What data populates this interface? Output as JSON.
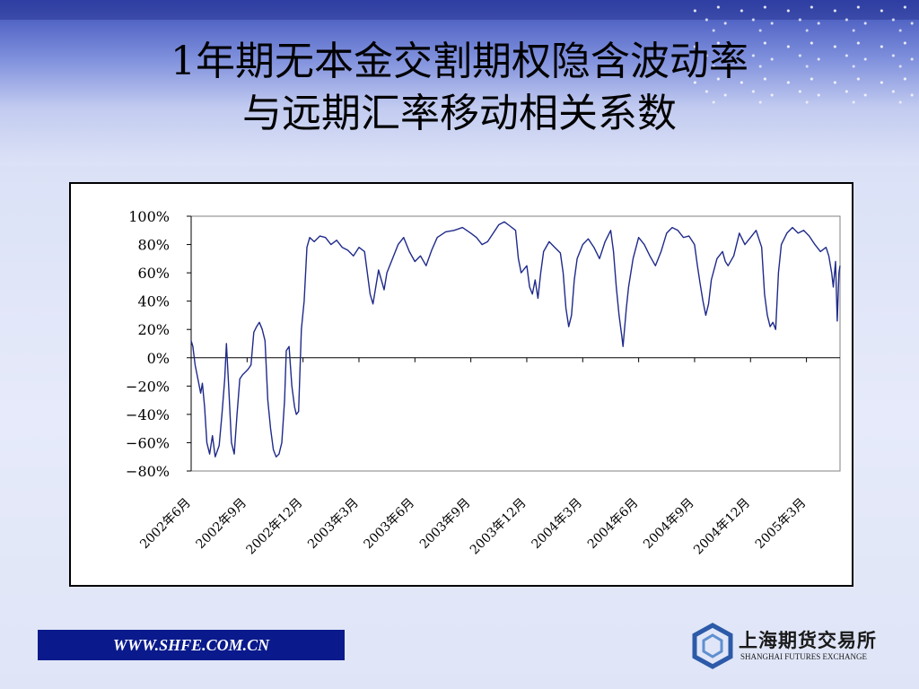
{
  "slide": {
    "title_line1": "1年期无本金交割期权隐含波动率",
    "title_line2": "与远期汇率移动相关系数",
    "url": "WWW.SHFE.COM.CN",
    "logo_cn": "上海期货交易所",
    "logo_en": "SHANGHAI FUTURES EXCHANGE"
  },
  "colors": {
    "line": "#1f2a8a",
    "url_bg": "#0a1a8c"
  },
  "chart_data": {
    "type": "line",
    "title": "",
    "xlabel": "",
    "ylabel": "",
    "ylim": [
      -80,
      100
    ],
    "y_ticks": [
      "100%",
      "80%",
      "60%",
      "40%",
      "20%",
      "0%",
      "−20%",
      "−40%",
      "−60%",
      "−80%"
    ],
    "y_tick_values": [
      100,
      80,
      60,
      40,
      20,
      0,
      -20,
      -40,
      -60,
      -80
    ],
    "x_ticks": [
      "2002年6月",
      "2002年9月",
      "2002年12月",
      "2003年3月",
      "2003年6月",
      "2003年9月",
      "2003年12月",
      "2004年3月",
      "2004年6月",
      "2004年9月",
      "2004年12月",
      "2005年3月"
    ],
    "x_range": [
      0,
      11.6
    ],
    "series": [
      {
        "name": "",
        "points": [
          [
            0.0,
            12
          ],
          [
            0.03,
            8
          ],
          [
            0.07,
            -5
          ],
          [
            0.12,
            -15
          ],
          [
            0.17,
            -25
          ],
          [
            0.2,
            -18
          ],
          [
            0.24,
            -35
          ],
          [
            0.28,
            -60
          ],
          [
            0.33,
            -68
          ],
          [
            0.38,
            -55
          ],
          [
            0.43,
            -70
          ],
          [
            0.5,
            -62
          ],
          [
            0.55,
            -40
          ],
          [
            0.6,
            -15
          ],
          [
            0.63,
            10
          ],
          [
            0.67,
            -20
          ],
          [
            0.72,
            -60
          ],
          [
            0.77,
            -68
          ],
          [
            0.82,
            -40
          ],
          [
            0.87,
            -15
          ],
          [
            0.92,
            -12
          ],
          [
            0.97,
            -10
          ],
          [
            1.02,
            -8
          ],
          [
            1.07,
            -5
          ],
          [
            1.12,
            18
          ],
          [
            1.17,
            22
          ],
          [
            1.22,
            25
          ],
          [
            1.27,
            20
          ],
          [
            1.32,
            12
          ],
          [
            1.37,
            -30
          ],
          [
            1.42,
            -50
          ],
          [
            1.47,
            -65
          ],
          [
            1.52,
            -70
          ],
          [
            1.57,
            -68
          ],
          [
            1.62,
            -60
          ],
          [
            1.67,
            -30
          ],
          [
            1.7,
            5
          ],
          [
            1.75,
            8
          ],
          [
            1.8,
            -20
          ],
          [
            1.85,
            -35
          ],
          [
            1.88,
            -40
          ],
          [
            1.92,
            -38
          ],
          [
            1.97,
            20
          ],
          [
            2.02,
            40
          ],
          [
            2.07,
            78
          ],
          [
            2.12,
            85
          ],
          [
            2.2,
            82
          ],
          [
            2.3,
            86
          ],
          [
            2.4,
            85
          ],
          [
            2.5,
            80
          ],
          [
            2.6,
            83
          ],
          [
            2.7,
            78
          ],
          [
            2.8,
            76
          ],
          [
            2.9,
            72
          ],
          [
            3.0,
            78
          ],
          [
            3.1,
            75
          ],
          [
            3.15,
            60
          ],
          [
            3.2,
            45
          ],
          [
            3.25,
            38
          ],
          [
            3.3,
            50
          ],
          [
            3.35,
            62
          ],
          [
            3.4,
            55
          ],
          [
            3.45,
            48
          ],
          [
            3.5,
            60
          ],
          [
            3.6,
            70
          ],
          [
            3.7,
            80
          ],
          [
            3.8,
            85
          ],
          [
            3.9,
            75
          ],
          [
            4.0,
            68
          ],
          [
            4.1,
            72
          ],
          [
            4.2,
            65
          ],
          [
            4.3,
            76
          ],
          [
            4.4,
            85
          ],
          [
            4.55,
            89
          ],
          [
            4.7,
            90
          ],
          [
            4.85,
            92
          ],
          [
            5.0,
            88
          ],
          [
            5.1,
            85
          ],
          [
            5.2,
            80
          ],
          [
            5.3,
            82
          ],
          [
            5.4,
            88
          ],
          [
            5.5,
            94
          ],
          [
            5.6,
            96
          ],
          [
            5.7,
            93
          ],
          [
            5.8,
            90
          ],
          [
            5.85,
            70
          ],
          [
            5.9,
            60
          ],
          [
            6.0,
            65
          ],
          [
            6.05,
            50
          ],
          [
            6.1,
            45
          ],
          [
            6.15,
            55
          ],
          [
            6.2,
            42
          ],
          [
            6.25,
            60
          ],
          [
            6.3,
            75
          ],
          [
            6.4,
            82
          ],
          [
            6.5,
            78
          ],
          [
            6.6,
            74
          ],
          [
            6.65,
            60
          ],
          [
            6.7,
            35
          ],
          [
            6.75,
            22
          ],
          [
            6.8,
            30
          ],
          [
            6.85,
            55
          ],
          [
            6.9,
            70
          ],
          [
            7.0,
            80
          ],
          [
            7.1,
            84
          ],
          [
            7.2,
            78
          ],
          [
            7.3,
            70
          ],
          [
            7.4,
            82
          ],
          [
            7.5,
            90
          ],
          [
            7.55,
            75
          ],
          [
            7.6,
            50
          ],
          [
            7.65,
            30
          ],
          [
            7.7,
            15
          ],
          [
            7.72,
            8
          ],
          [
            7.78,
            35
          ],
          [
            7.82,
            50
          ],
          [
            7.9,
            70
          ],
          [
            8.0,
            85
          ],
          [
            8.1,
            80
          ],
          [
            8.2,
            72
          ],
          [
            8.3,
            65
          ],
          [
            8.4,
            75
          ],
          [
            8.5,
            88
          ],
          [
            8.6,
            92
          ],
          [
            8.7,
            90
          ],
          [
            8.8,
            85
          ],
          [
            8.9,
            86
          ],
          [
            9.0,
            80
          ],
          [
            9.05,
            65
          ],
          [
            9.1,
            52
          ],
          [
            9.15,
            40
          ],
          [
            9.2,
            30
          ],
          [
            9.25,
            38
          ],
          [
            9.3,
            55
          ],
          [
            9.4,
            70
          ],
          [
            9.5,
            75
          ],
          [
            9.55,
            68
          ],
          [
            9.6,
            65
          ],
          [
            9.7,
            72
          ],
          [
            9.8,
            88
          ],
          [
            9.9,
            80
          ],
          [
            10.0,
            85
          ],
          [
            10.1,
            90
          ],
          [
            10.2,
            78
          ],
          [
            10.25,
            45
          ],
          [
            10.3,
            30
          ],
          [
            10.35,
            22
          ],
          [
            10.4,
            25
          ],
          [
            10.45,
            20
          ],
          [
            10.5,
            60
          ],
          [
            10.55,
            80
          ],
          [
            10.65,
            88
          ],
          [
            10.75,
            92
          ],
          [
            10.85,
            88
          ],
          [
            10.95,
            90
          ],
          [
            11.05,
            86
          ],
          [
            11.15,
            80
          ],
          [
            11.25,
            75
          ],
          [
            11.35,
            78
          ],
          [
            11.4,
            72
          ],
          [
            11.45,
            60
          ],
          [
            11.48,
            50
          ],
          [
            11.52,
            68
          ],
          [
            11.55,
            26
          ],
          [
            11.58,
            60
          ],
          [
            11.6,
            65
          ]
        ]
      }
    ]
  }
}
